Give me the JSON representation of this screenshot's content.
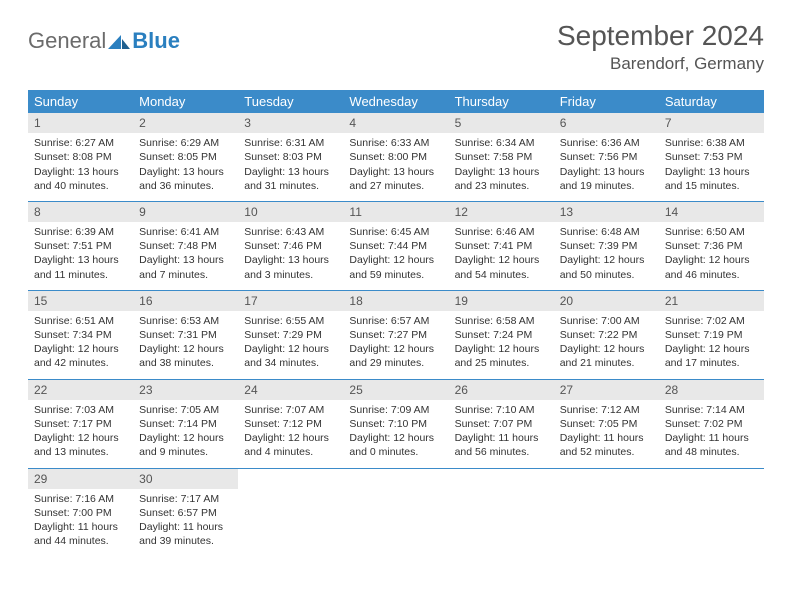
{
  "logo": {
    "general": "General",
    "blue": "Blue"
  },
  "title": "September 2024",
  "location": "Barendorf, Germany",
  "colors": {
    "header_bg": "#3b8bc9",
    "header_text": "#ffffff",
    "daynum_bg": "#e8e8e8",
    "rule": "#3b8bc9",
    "logo_gray": "#6b6b6b",
    "logo_blue": "#2a7fbf"
  },
  "weekdays": [
    "Sunday",
    "Monday",
    "Tuesday",
    "Wednesday",
    "Thursday",
    "Friday",
    "Saturday"
  ],
  "weeks": [
    [
      {
        "n": "1",
        "sr": "Sunrise: 6:27 AM",
        "ss": "Sunset: 8:08 PM",
        "d1": "Daylight: 13 hours",
        "d2": "and 40 minutes."
      },
      {
        "n": "2",
        "sr": "Sunrise: 6:29 AM",
        "ss": "Sunset: 8:05 PM",
        "d1": "Daylight: 13 hours",
        "d2": "and 36 minutes."
      },
      {
        "n": "3",
        "sr": "Sunrise: 6:31 AM",
        "ss": "Sunset: 8:03 PM",
        "d1": "Daylight: 13 hours",
        "d2": "and 31 minutes."
      },
      {
        "n": "4",
        "sr": "Sunrise: 6:33 AM",
        "ss": "Sunset: 8:00 PM",
        "d1": "Daylight: 13 hours",
        "d2": "and 27 minutes."
      },
      {
        "n": "5",
        "sr": "Sunrise: 6:34 AM",
        "ss": "Sunset: 7:58 PM",
        "d1": "Daylight: 13 hours",
        "d2": "and 23 minutes."
      },
      {
        "n": "6",
        "sr": "Sunrise: 6:36 AM",
        "ss": "Sunset: 7:56 PM",
        "d1": "Daylight: 13 hours",
        "d2": "and 19 minutes."
      },
      {
        "n": "7",
        "sr": "Sunrise: 6:38 AM",
        "ss": "Sunset: 7:53 PM",
        "d1": "Daylight: 13 hours",
        "d2": "and 15 minutes."
      }
    ],
    [
      {
        "n": "8",
        "sr": "Sunrise: 6:39 AM",
        "ss": "Sunset: 7:51 PM",
        "d1": "Daylight: 13 hours",
        "d2": "and 11 minutes."
      },
      {
        "n": "9",
        "sr": "Sunrise: 6:41 AM",
        "ss": "Sunset: 7:48 PM",
        "d1": "Daylight: 13 hours",
        "d2": "and 7 minutes."
      },
      {
        "n": "10",
        "sr": "Sunrise: 6:43 AM",
        "ss": "Sunset: 7:46 PM",
        "d1": "Daylight: 13 hours",
        "d2": "and 3 minutes."
      },
      {
        "n": "11",
        "sr": "Sunrise: 6:45 AM",
        "ss": "Sunset: 7:44 PM",
        "d1": "Daylight: 12 hours",
        "d2": "and 59 minutes."
      },
      {
        "n": "12",
        "sr": "Sunrise: 6:46 AM",
        "ss": "Sunset: 7:41 PM",
        "d1": "Daylight: 12 hours",
        "d2": "and 54 minutes."
      },
      {
        "n": "13",
        "sr": "Sunrise: 6:48 AM",
        "ss": "Sunset: 7:39 PM",
        "d1": "Daylight: 12 hours",
        "d2": "and 50 minutes."
      },
      {
        "n": "14",
        "sr": "Sunrise: 6:50 AM",
        "ss": "Sunset: 7:36 PM",
        "d1": "Daylight: 12 hours",
        "d2": "and 46 minutes."
      }
    ],
    [
      {
        "n": "15",
        "sr": "Sunrise: 6:51 AM",
        "ss": "Sunset: 7:34 PM",
        "d1": "Daylight: 12 hours",
        "d2": "and 42 minutes."
      },
      {
        "n": "16",
        "sr": "Sunrise: 6:53 AM",
        "ss": "Sunset: 7:31 PM",
        "d1": "Daylight: 12 hours",
        "d2": "and 38 minutes."
      },
      {
        "n": "17",
        "sr": "Sunrise: 6:55 AM",
        "ss": "Sunset: 7:29 PM",
        "d1": "Daylight: 12 hours",
        "d2": "and 34 minutes."
      },
      {
        "n": "18",
        "sr": "Sunrise: 6:57 AM",
        "ss": "Sunset: 7:27 PM",
        "d1": "Daylight: 12 hours",
        "d2": "and 29 minutes."
      },
      {
        "n": "19",
        "sr": "Sunrise: 6:58 AM",
        "ss": "Sunset: 7:24 PM",
        "d1": "Daylight: 12 hours",
        "d2": "and 25 minutes."
      },
      {
        "n": "20",
        "sr": "Sunrise: 7:00 AM",
        "ss": "Sunset: 7:22 PM",
        "d1": "Daylight: 12 hours",
        "d2": "and 21 minutes."
      },
      {
        "n": "21",
        "sr": "Sunrise: 7:02 AM",
        "ss": "Sunset: 7:19 PM",
        "d1": "Daylight: 12 hours",
        "d2": "and 17 minutes."
      }
    ],
    [
      {
        "n": "22",
        "sr": "Sunrise: 7:03 AM",
        "ss": "Sunset: 7:17 PM",
        "d1": "Daylight: 12 hours",
        "d2": "and 13 minutes."
      },
      {
        "n": "23",
        "sr": "Sunrise: 7:05 AM",
        "ss": "Sunset: 7:14 PM",
        "d1": "Daylight: 12 hours",
        "d2": "and 9 minutes."
      },
      {
        "n": "24",
        "sr": "Sunrise: 7:07 AM",
        "ss": "Sunset: 7:12 PM",
        "d1": "Daylight: 12 hours",
        "d2": "and 4 minutes."
      },
      {
        "n": "25",
        "sr": "Sunrise: 7:09 AM",
        "ss": "Sunset: 7:10 PM",
        "d1": "Daylight: 12 hours",
        "d2": "and 0 minutes."
      },
      {
        "n": "26",
        "sr": "Sunrise: 7:10 AM",
        "ss": "Sunset: 7:07 PM",
        "d1": "Daylight: 11 hours",
        "d2": "and 56 minutes."
      },
      {
        "n": "27",
        "sr": "Sunrise: 7:12 AM",
        "ss": "Sunset: 7:05 PM",
        "d1": "Daylight: 11 hours",
        "d2": "and 52 minutes."
      },
      {
        "n": "28",
        "sr": "Sunrise: 7:14 AM",
        "ss": "Sunset: 7:02 PM",
        "d1": "Daylight: 11 hours",
        "d2": "and 48 minutes."
      }
    ],
    [
      {
        "n": "29",
        "sr": "Sunrise: 7:16 AM",
        "ss": "Sunset: 7:00 PM",
        "d1": "Daylight: 11 hours",
        "d2": "and 44 minutes."
      },
      {
        "n": "30",
        "sr": "Sunrise: 7:17 AM",
        "ss": "Sunset: 6:57 PM",
        "d1": "Daylight: 11 hours",
        "d2": "and 39 minutes."
      },
      {
        "n": "",
        "sr": "",
        "ss": "",
        "d1": "",
        "d2": ""
      },
      {
        "n": "",
        "sr": "",
        "ss": "",
        "d1": "",
        "d2": ""
      },
      {
        "n": "",
        "sr": "",
        "ss": "",
        "d1": "",
        "d2": ""
      },
      {
        "n": "",
        "sr": "",
        "ss": "",
        "d1": "",
        "d2": ""
      },
      {
        "n": "",
        "sr": "",
        "ss": "",
        "d1": "",
        "d2": ""
      }
    ]
  ]
}
